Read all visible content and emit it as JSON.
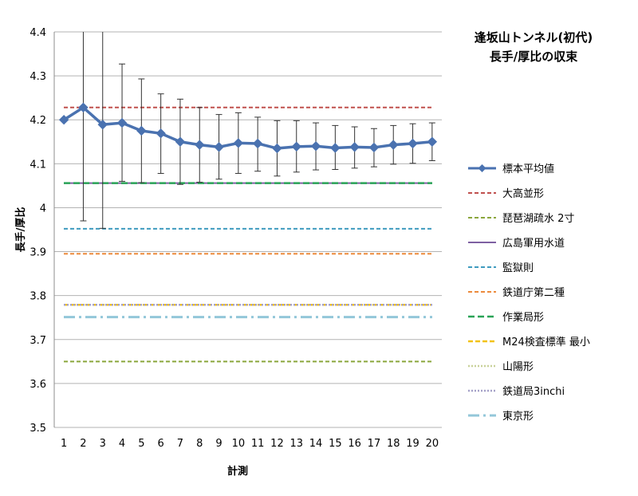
{
  "chart_data": {
    "type": "line",
    "title_lines": [
      "逢坂山トンネル(初代)",
      "長手/厚比の収束"
    ],
    "xlabel": "計測",
    "ylabel": "長手/厚比",
    "ylim": [
      3.5,
      4.4
    ],
    "yticks": [
      "3.5",
      "3.6",
      "3.7",
      "3.8",
      "3.9",
      "4",
      "4.1",
      "4.2",
      "4.3",
      "4.4"
    ],
    "ytick_values": [
      3.5,
      3.6,
      3.7,
      3.8,
      3.9,
      4.0,
      4.1,
      4.2,
      4.3,
      4.4
    ],
    "categories": [
      "1",
      "2",
      "3",
      "4",
      "5",
      "6",
      "7",
      "8",
      "9",
      "10",
      "11",
      "12",
      "13",
      "14",
      "15",
      "16",
      "17",
      "18",
      "19",
      "20"
    ],
    "grid": "horizontal",
    "legend_position": "right",
    "series": [
      {
        "name": "標本平均値",
        "kind": "line-marker",
        "color": "#4a72b0",
        "values": [
          4.2,
          4.228,
          4.189,
          4.193,
          4.175,
          4.169,
          4.15,
          4.143,
          4.138,
          4.147,
          4.146,
          4.135,
          4.139,
          4.14,
          4.136,
          4.138,
          4.137,
          4.143,
          4.146,
          4.15
        ],
        "error_upper": [
          4.2,
          4.4,
          4.4,
          4.327,
          4.293,
          4.259,
          4.247,
          4.228,
          4.212,
          4.216,
          4.206,
          4.198,
          4.198,
          4.193,
          4.187,
          4.184,
          4.18,
          4.187,
          4.191,
          4.193
        ],
        "error_lower": [
          4.2,
          3.97,
          3.953,
          4.06,
          4.057,
          4.078,
          4.053,
          4.058,
          4.065,
          4.078,
          4.083,
          4.072,
          4.081,
          4.086,
          4.087,
          4.09,
          4.093,
          4.099,
          4.101,
          4.107
        ]
      },
      {
        "name": "大高並形",
        "kind": "hline",
        "value": 4.228,
        "color": "#c0504d",
        "dash": "5,3",
        "width": 2
      },
      {
        "name": "琵琶湖疏水 2寸",
        "kind": "hline",
        "value": 3.65,
        "color": "#8aa63c",
        "dash": "5,3",
        "width": 2
      },
      {
        "name": "広島軍用水道",
        "kind": "hline",
        "value": 4.056,
        "color": "#7e60a2",
        "dash": "",
        "width": 2
      },
      {
        "name": "監獄則",
        "kind": "hline",
        "value": 3.952,
        "color": "#3f9bbf",
        "dash": "5,3",
        "width": 2
      },
      {
        "name": "鉄道庁第二種",
        "kind": "hline",
        "value": 3.895,
        "color": "#ec8a3c",
        "dash": "5,3",
        "width": 2
      },
      {
        "name": "作業局形",
        "kind": "hline",
        "value": 4.056,
        "color": "#2aa357",
        "dash": "8,4",
        "width": 2.5
      },
      {
        "name": "M24検査標準 最小",
        "kind": "hline",
        "value": 3.779,
        "color": "#f2c316",
        "dash": "6,3",
        "width": 2.5
      },
      {
        "name": "山陽形",
        "kind": "hline",
        "value": 3.779,
        "color": "#c9d29a",
        "dash": "2,2",
        "width": 2.5
      },
      {
        "name": "鉄道局3inchi",
        "kind": "hline",
        "value": 3.779,
        "color": "#a5a1c8",
        "dash": "2,2",
        "width": 2.5
      },
      {
        "name": "東京形",
        "kind": "hline",
        "value": 3.751,
        "color": "#93c7d9",
        "dash": "14,5,3,5",
        "width": 3
      }
    ]
  }
}
